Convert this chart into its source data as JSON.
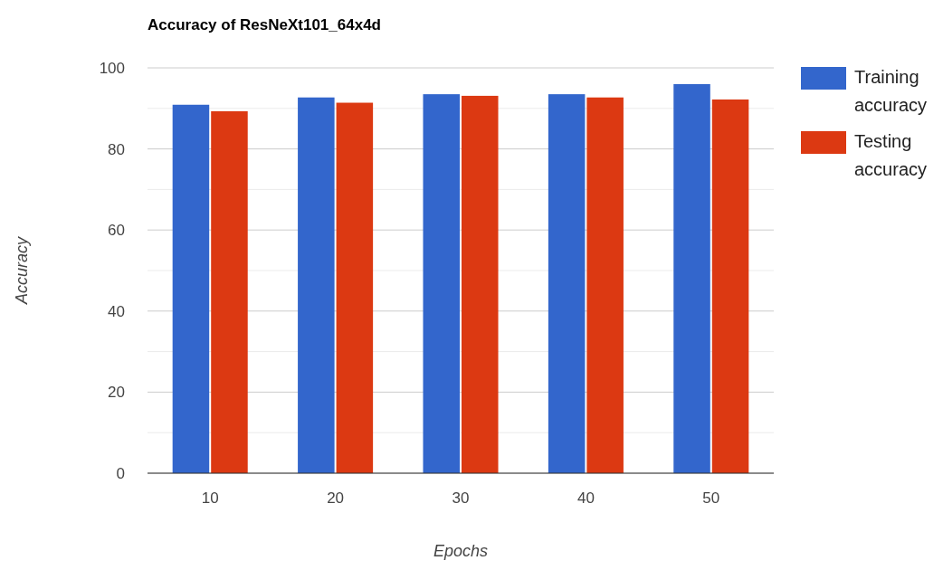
{
  "chart_data": {
    "type": "bar",
    "title": "Accuracy of ResNeXt101_64x4d",
    "xlabel": "Epochs",
    "ylabel": "Accuracy",
    "categories": [
      "10",
      "20",
      "30",
      "40",
      "50"
    ],
    "series": [
      {
        "name": "Training accuracy",
        "color": "#3366cc",
        "values": [
          90.9,
          92.7,
          93.5,
          93.5,
          96.0
        ]
      },
      {
        "name": "Testing accuracy",
        "color": "#dc3912",
        "values": [
          89.3,
          91.4,
          93.1,
          92.7,
          92.2
        ]
      }
    ],
    "ylim": [
      0,
      100
    ],
    "yticks": [
      0,
      {
        "value": 10,
        "label": null
      },
      20,
      {
        "value": 30,
        "label": null
      },
      40,
      {
        "value": 50,
        "label": null
      },
      60,
      {
        "value": 70,
        "label": null
      },
      80,
      {
        "value": 90,
        "label": null
      },
      100
    ],
    "grid": "y",
    "legend": "right"
  }
}
